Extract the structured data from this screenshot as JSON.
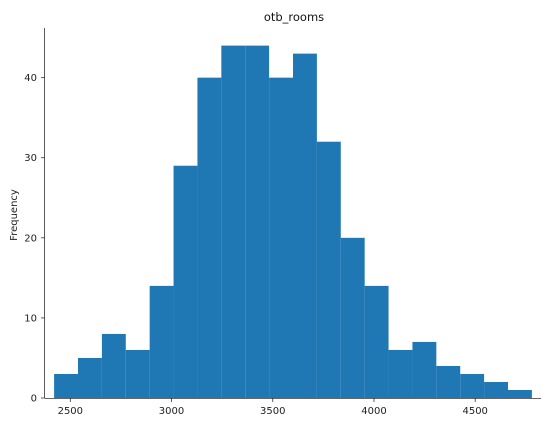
{
  "chart_data": {
    "type": "bar",
    "title": "otb_rooms",
    "xlabel": "",
    "ylabel": "Frequency",
    "bin_edges": [
      2420,
      2538,
      2656,
      2774,
      2892,
      3010,
      3128,
      3246,
      3364,
      3482,
      3600,
      3718,
      3836,
      3954,
      4072,
      4190,
      4308,
      4426,
      4544,
      4662,
      4780
    ],
    "values": [
      3,
      5,
      8,
      6,
      14,
      29,
      40,
      44,
      44,
      40,
      43,
      32,
      20,
      14,
      6,
      7,
      4,
      3,
      2,
      1
    ],
    "xlim": [
      2375,
      4825
    ],
    "ylim": [
      0,
      46.2
    ],
    "x_ticks": [
      2500,
      3000,
      3500,
      4000,
      4500
    ],
    "y_ticks": [
      0,
      10,
      20,
      30,
      40
    ],
    "bar_color": "#1f77b4",
    "grid": false
  }
}
